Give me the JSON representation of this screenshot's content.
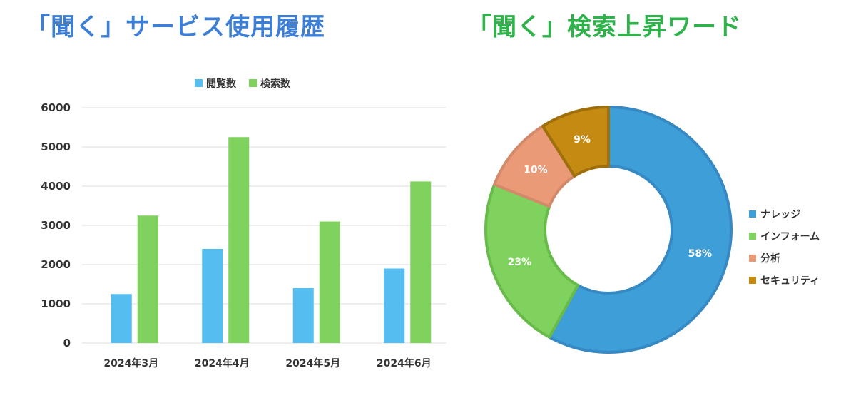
{
  "titles": {
    "left": "「聞く」サービス使用履歴",
    "right": "「聞く」検索上昇ワード"
  },
  "chart_data": [
    {
      "type": "bar",
      "categories": [
        "2024年3月",
        "2024年4月",
        "2024年5月",
        "2024年6月"
      ],
      "series": [
        {
          "name": "閲覧数",
          "color": "#55bdf0",
          "values": [
            1250,
            2400,
            1400,
            1900
          ]
        },
        {
          "name": "検索数",
          "color": "#7ed25d",
          "values": [
            3250,
            5250,
            3100,
            4120
          ]
        }
      ],
      "ylim": [
        0,
        6000
      ],
      "yticks": [
        0,
        1000,
        2000,
        3000,
        4000,
        5000,
        6000
      ],
      "grid": true,
      "legend": "top"
    },
    {
      "type": "pie",
      "donut": true,
      "slices": [
        {
          "name": "ナレッジ",
          "value": 58,
          "label": "58%",
          "color": "#3d9ed8",
          "border": "#3689c3",
          "label_color": "#ffffff"
        },
        {
          "name": "インフォーム",
          "value": 23,
          "label": "23%",
          "color": "#7ed25d",
          "border": "#68bb4b",
          "label_color": "#ffffff"
        },
        {
          "name": "分析",
          "value": 10,
          "label": "10%",
          "color": "#eb9a78",
          "border": "#d38a6b",
          "label_color": "#ffffff"
        },
        {
          "name": "セキュリティ",
          "value": 9,
          "label": "9%",
          "color": "#c48a12",
          "border": "#9f6f0c",
          "label_color": "#ffffff"
        }
      ],
      "legend": "right"
    }
  ]
}
